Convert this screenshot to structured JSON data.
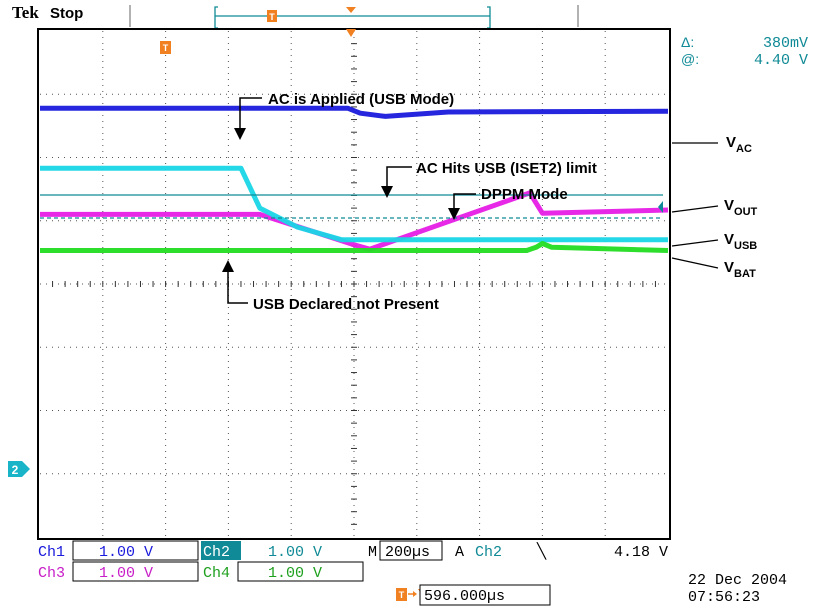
{
  "header": {
    "brand": "Tek",
    "run_state": "Stop",
    "trigger_marker": "T"
  },
  "cursor_readout": {
    "delta_label": "Δ:",
    "delta_value": "380mV",
    "at_label": "@:",
    "at_value": "4.40 V"
  },
  "ground_markers": {
    "ch2": "2"
  },
  "annotations": {
    "ac_applied": "AC is Applied (USB Mode)",
    "ac_hits_limit": "AC Hits USB (ISET2) limit",
    "dppm_mode": "DPPM Mode",
    "usb_not_present": "USB Declared not Present"
  },
  "trace_labels": {
    "vac": {
      "main": "V",
      "sub": "AC"
    },
    "vout": {
      "main": "V",
      "sub": "OUT"
    },
    "vusb": {
      "main": "V",
      "sub": "USB"
    },
    "vbat": {
      "main": "V",
      "sub": "BAT"
    }
  },
  "status_bar": {
    "ch1_label": "Ch1",
    "ch1_scale": "1.00 V",
    "ch2_label": "Ch2",
    "ch2_scale": "1.00 V",
    "ch3_label": "Ch3",
    "ch3_scale": "1.00 V",
    "ch4_label": "Ch4",
    "ch4_scale": "1.00 V",
    "timebase_prefix": "M",
    "timebase": "200µs",
    "trigger_mode": "A",
    "trigger_source": "Ch2",
    "trigger_slope": "╲",
    "trigger_level": "4.18 V",
    "trigger_position": "596.000µs",
    "date": "22 Dec  2004",
    "time": "07:56:23"
  },
  "colors": {
    "ch1": "#1a1adc",
    "ch2": "#19d6e6",
    "ch3": "#e61ee6",
    "ch4": "#22dc22",
    "teal": "#0f8a96",
    "trigger": "#f08020"
  },
  "chart_data": {
    "type": "line",
    "title": "",
    "xlabel": "",
    "ylabel": "",
    "x_unit": "µs",
    "y_unit": "V",
    "xlim": [
      0,
      2000
    ],
    "ylim": [
      -4,
      4
    ],
    "grid": true,
    "series": [
      {
        "name": "Ch1",
        "x": [
          0,
          980,
          1020,
          1100,
          1300,
          2000
        ],
        "y": [
          2.78,
          2.78,
          2.7,
          2.65,
          2.72,
          2.73
        ]
      },
      {
        "name": "Ch2",
        "x": [
          0,
          640,
          700,
          820,
          960,
          1200,
          1900,
          2000
        ],
        "y": [
          1.83,
          1.83,
          1.2,
          0.9,
          0.7,
          0.7,
          0.7,
          0.7
        ]
      },
      {
        "name": "Ch3",
        "x": [
          0,
          700,
          1000,
          1050,
          1560,
          1600,
          2000
        ],
        "y": [
          1.1,
          1.1,
          0.62,
          0.55,
          1.44,
          1.12,
          1.17
        ]
      },
      {
        "name": "Ch4",
        "x": [
          0,
          1550,
          1580,
          1600,
          1630,
          2000
        ],
        "y": [
          0.53,
          0.53,
          0.58,
          0.64,
          0.58,
          0.53
        ]
      }
    ]
  }
}
